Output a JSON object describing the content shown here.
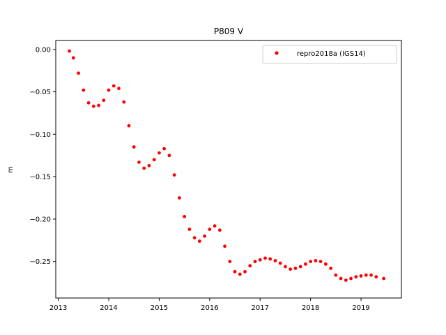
{
  "chart_data": {
    "type": "scatter",
    "title": "P809 V",
    "xlabel": "",
    "ylabel": "m",
    "xlim": [
      2012.95,
      2019.8
    ],
    "ylim": [
      -0.293,
      0.0105
    ],
    "x_ticks": [
      2013,
      2014,
      2015,
      2016,
      2017,
      2018,
      2019
    ],
    "x_tick_labels": [
      "2013",
      "2014",
      "2015",
      "2016",
      "2017",
      "2018",
      "2019"
    ],
    "y_ticks": [
      0.0,
      -0.05,
      -0.1,
      -0.15,
      -0.2,
      -0.25
    ],
    "y_tick_labels": [
      "0.00",
      "−0.05",
      "−0.10",
      "−0.15",
      "−0.20",
      "−0.25"
    ],
    "grid": false,
    "legend_position": "top-right",
    "series": [
      {
        "name": "repro2018a (IGS14)",
        "color": "#ff0000",
        "marker": "circle",
        "x": [
          2013.22,
          2013.3,
          2013.4,
          2013.5,
          2013.6,
          2013.7,
          2013.8,
          2013.9,
          2014.0,
          2014.1,
          2014.2,
          2014.3,
          2014.4,
          2014.5,
          2014.6,
          2014.7,
          2014.8,
          2014.9,
          2015.0,
          2015.1,
          2015.2,
          2015.3,
          2015.4,
          2015.5,
          2015.6,
          2015.7,
          2015.8,
          2015.9,
          2016.0,
          2016.1,
          2016.2,
          2016.3,
          2016.4,
          2016.5,
          2016.6,
          2016.7,
          2016.8,
          2016.9,
          2017.0,
          2017.1,
          2017.2,
          2017.3,
          2017.4,
          2017.5,
          2017.6,
          2017.7,
          2017.8,
          2017.9,
          2018.0,
          2018.1,
          2018.2,
          2018.3,
          2018.4,
          2018.5,
          2018.6,
          2018.7,
          2018.8,
          2018.9,
          2019.0,
          2019.1,
          2019.2,
          2019.3,
          2019.45
        ],
        "y": [
          -0.002,
          -0.01,
          -0.028,
          -0.048,
          -0.063,
          -0.067,
          -0.066,
          -0.06,
          -0.048,
          -0.043,
          -0.046,
          -0.062,
          -0.09,
          -0.115,
          -0.133,
          -0.14,
          -0.137,
          -0.13,
          -0.122,
          -0.117,
          -0.125,
          -0.148,
          -0.175,
          -0.197,
          -0.212,
          -0.222,
          -0.226,
          -0.22,
          -0.212,
          -0.208,
          -0.213,
          -0.232,
          -0.25,
          -0.262,
          -0.265,
          -0.262,
          -0.255,
          -0.25,
          -0.248,
          -0.246,
          -0.247,
          -0.249,
          -0.252,
          -0.256,
          -0.259,
          -0.258,
          -0.256,
          -0.253,
          -0.25,
          -0.249,
          -0.25,
          -0.253,
          -0.258,
          -0.266,
          -0.27,
          -0.272,
          -0.27,
          -0.268,
          -0.267,
          -0.266,
          -0.266,
          -0.268,
          -0.27
        ]
      }
    ]
  }
}
